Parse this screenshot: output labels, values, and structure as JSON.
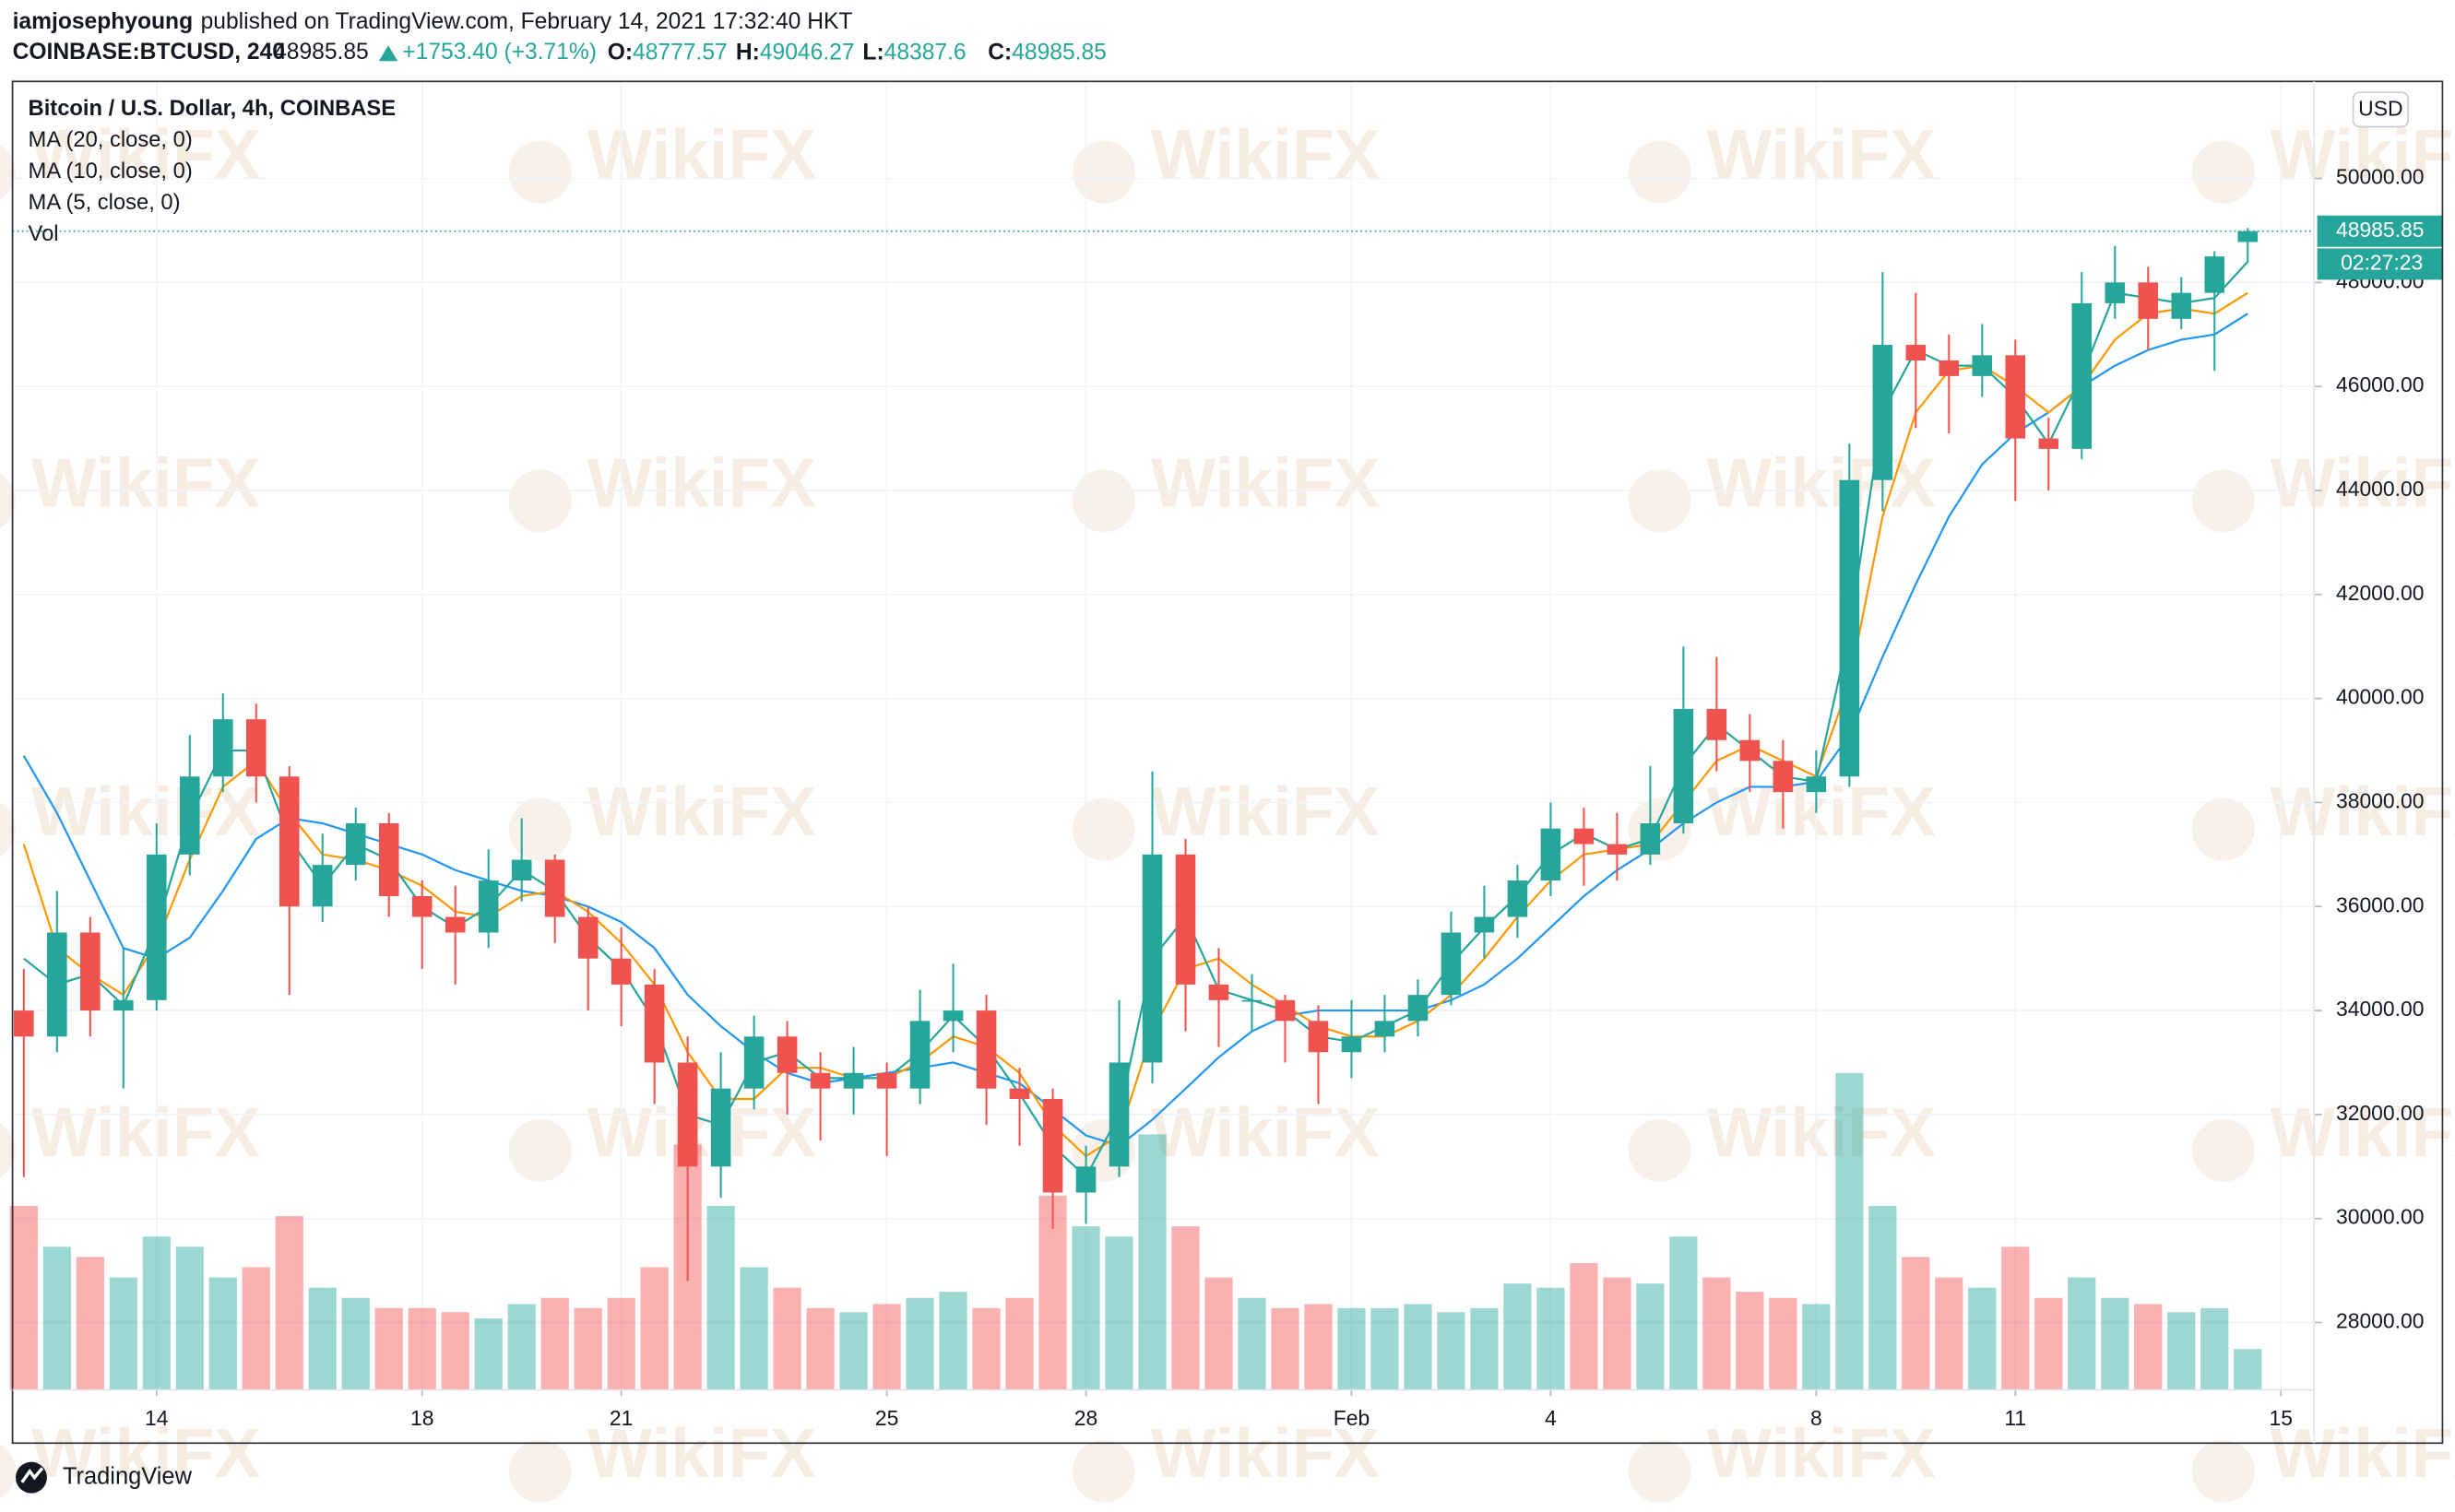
{
  "header": {
    "author": "iamjosephyoung",
    "published": "published on TradingView.com, February 14, 2021 17:32:40 HKT",
    "symbol": "COINBASE:BTCUSD, 240",
    "change": "+1753.40 (+3.71%)",
    "ohlc_labels": [
      "O:",
      "H:",
      "L:",
      "C:"
    ]
  },
  "chart_data": {
    "type": "candlestick",
    "title": "Bitcoin / U.S. Dollar, 4h, COINBASE",
    "currency": "USD",
    "countdown": "02:27:23",
    "watermark": "WikiFX",
    "brand": "TradingView",
    "volume_name": "Vol",
    "up_color": "#26a69a",
    "down_color": "#ef5350",
    "open": [
      34000,
      33500,
      35500,
      34000,
      34200,
      37000,
      38500,
      39600,
      38500,
      36000,
      36800,
      37600,
      36200,
      35800,
      35500,
      36500,
      36900,
      35800,
      35000,
      34500,
      33000,
      31000,
      32500,
      33500,
      32800,
      32500,
      32800,
      32500,
      33800,
      34000,
      32500,
      32300,
      30500,
      31000,
      33000,
      37000,
      34500,
      34200,
      34200,
      33800,
      33200,
      33500,
      33800,
      34300,
      35500,
      35800,
      36500,
      37500,
      37200,
      37000,
      37600,
      39800,
      39200,
      38800,
      38200,
      38500,
      44200,
      46800,
      46500,
      46200,
      46600,
      45000,
      44800,
      47600,
      48000,
      47300,
      47800,
      48777.57
    ],
    "high": [
      34800,
      36300,
      35800,
      35200,
      37600,
      39300,
      40100,
      39900,
      38700,
      37400,
      37900,
      37800,
      36500,
      36400,
      37100,
      37700,
      37000,
      36000,
      35600,
      34800,
      33500,
      33200,
      33900,
      33800,
      33200,
      33300,
      33000,
      34400,
      34900,
      34300,
      32900,
      32500,
      31400,
      34200,
      38600,
      37300,
      35200,
      34700,
      34300,
      34100,
      34200,
      34300,
      34600,
      35900,
      36400,
      36800,
      38000,
      37900,
      37800,
      38700,
      41000,
      40800,
      39700,
      39200,
      39000,
      44900,
      48200,
      47800,
      47000,
      47200,
      46900,
      45400,
      48200,
      48700,
      48300,
      48100,
      48600,
      49046.27
    ],
    "low": [
      30800,
      33200,
      33500,
      32500,
      34000,
      36600,
      38200,
      38000,
      34300,
      35700,
      36500,
      35800,
      34800,
      34500,
      35200,
      36100,
      35300,
      34000,
      33700,
      32200,
      28800,
      30400,
      32100,
      32000,
      31500,
      32000,
      31200,
      32200,
      33200,
      31800,
      31400,
      29800,
      29900,
      30800,
      32600,
      33600,
      33300,
      33600,
      33000,
      32200,
      32700,
      33200,
      33500,
      34100,
      35000,
      35400,
      36200,
      36400,
      36500,
      36800,
      37400,
      38600,
      38200,
      37500,
      37800,
      38300,
      43600,
      45200,
      45100,
      45800,
      43800,
      44000,
      44600,
      47300,
      46700,
      47100,
      46300,
      48387.6
    ],
    "close": [
      33500,
      35500,
      34000,
      34200,
      37000,
      38500,
      39600,
      38500,
      36000,
      36800,
      37600,
      36200,
      35800,
      35500,
      36500,
      36900,
      35800,
      35000,
      34500,
      33000,
      31000,
      32500,
      33500,
      32800,
      32500,
      32800,
      32500,
      33800,
      34000,
      32500,
      32300,
      30500,
      31000,
      33000,
      37000,
      34500,
      34200,
      34200,
      33800,
      33200,
      33500,
      33800,
      34300,
      35500,
      35800,
      36500,
      37500,
      37200,
      37000,
      37600,
      39800,
      39200,
      38800,
      38200,
      38500,
      44200,
      46800,
      46500,
      46200,
      46600,
      45000,
      44800,
      47600,
      48000,
      47300,
      47800,
      48500,
      48985.85
    ],
    "volume": [
      9000,
      7000,
      6500,
      5500,
      7500,
      7000,
      5500,
      6000,
      8500,
      5000,
      4500,
      4000,
      4000,
      3800,
      3500,
      4200,
      4500,
      4000,
      4500,
      6000,
      12000,
      9000,
      6000,
      5000,
      4000,
      3800,
      4200,
      4500,
      4800,
      4000,
      4500,
      9500,
      8000,
      7500,
      12500,
      8000,
      5500,
      4500,
      4000,
      4200,
      4000,
      4000,
      4200,
      3800,
      4000,
      5200,
      5000,
      6200,
      5500,
      5200,
      7500,
      5500,
      4800,
      4500,
      4200,
      15500,
      9000,
      6500,
      5500,
      5000,
      7000,
      4500,
      5500,
      4500,
      4200,
      3800,
      4000,
      2000
    ],
    "vlim": [
      0,
      16000
    ],
    "series": [
      {
        "name": "MA (20, close, 0)",
        "color": "#2196f3",
        "values": [
          38900,
          37800,
          36500,
          35200,
          35000,
          35400,
          36300,
          37300,
          37700,
          37600,
          37400,
          37200,
          37000,
          36700,
          36500,
          36300,
          36200,
          36000,
          35700,
          35200,
          34300,
          33700,
          33200,
          32800,
          32600,
          32700,
          32800,
          32900,
          33000,
          32800,
          32600,
          32100,
          31600,
          31400,
          31900,
          32500,
          33100,
          33600,
          33900,
          34000,
          34000,
          34000,
          34000,
          34200,
          34500,
          35000,
          35600,
          36200,
          36700,
          37100,
          37600,
          38000,
          38300,
          38300,
          38400,
          39300,
          40800,
          42200,
          43500,
          44500,
          45100,
          45500,
          46000,
          46400,
          46700,
          46900,
          47000,
          47400
        ]
      },
      {
        "name": "MA (10, close, 0)",
        "color": "#ff9800",
        "values": [
          37200,
          35200,
          34700,
          34300,
          35300,
          36900,
          38300,
          38800,
          37800,
          37000,
          36900,
          36700,
          36400,
          35900,
          35800,
          36200,
          36300,
          35900,
          35300,
          34500,
          33200,
          32300,
          32300,
          32900,
          32900,
          32700,
          32700,
          33000,
          33500,
          33300,
          32800,
          31800,
          31200,
          31600,
          33600,
          34800,
          35000,
          34500,
          34100,
          33700,
          33500,
          33500,
          33800,
          34300,
          35000,
          35800,
          36500,
          37000,
          37100,
          37200,
          38000,
          38800,
          39100,
          38800,
          38500,
          40300,
          43500,
          45500,
          46300,
          46400,
          46000,
          45500,
          46000,
          46900,
          47400,
          47500,
          47400,
          47800
        ]
      },
      {
        "name": "MA (5, close, 0)",
        "color": "#26a69a",
        "values": [
          35000,
          34500,
          34700,
          34100,
          35600,
          37700,
          39000,
          39000,
          37300,
          36400,
          37200,
          36900,
          36000,
          35600,
          36000,
          36700,
          36300,
          35400,
          34800,
          33800,
          32000,
          31800,
          33000,
          33200,
          32700,
          32700,
          32700,
          33200,
          33900,
          33300,
          32400,
          31400,
          30800,
          32000,
          35000,
          35800,
          34400,
          34200,
          34000,
          33500,
          33400,
          33700,
          34000,
          34900,
          35600,
          36200,
          37000,
          37400,
          37100,
          37300,
          38700,
          39500,
          39000,
          38500,
          38400,
          41300,
          45500,
          46700,
          46400,
          46400,
          45800,
          44900,
          46200,
          47800,
          47700,
          47600,
          47700,
          48400
        ]
      }
    ],
    "ylim": [
      26705,
      51866
    ],
    "yticks": [
      {
        "value": 28000,
        "label": "28000.00"
      },
      {
        "value": 30000,
        "label": "30000.00"
      },
      {
        "value": 32000,
        "label": "32000.00"
      },
      {
        "value": 34000,
        "label": "34000.00"
      },
      {
        "value": 36000,
        "label": "36000.00"
      },
      {
        "value": 38000,
        "label": "38000.00"
      },
      {
        "value": 40000,
        "label": "40000.00"
      },
      {
        "value": 42000,
        "label": "42000.00"
      },
      {
        "value": 44000,
        "label": "44000.00"
      },
      {
        "value": 46000,
        "label": "46000.00"
      },
      {
        "value": 48000,
        "label": "48000.00"
      },
      {
        "value": 50000,
        "label": "50000.00"
      }
    ],
    "xlim": [
      -0.34,
      69
    ],
    "xticks": [
      {
        "value": 4,
        "label": "14"
      },
      {
        "value": 12,
        "label": "18"
      },
      {
        "value": 18,
        "label": "21"
      },
      {
        "value": 26,
        "label": "25"
      },
      {
        "value": 32,
        "label": "28"
      },
      {
        "value": 40,
        "label": "Feb"
      },
      {
        "value": 46,
        "label": "4"
      },
      {
        "value": 54,
        "label": "8"
      },
      {
        "value": 60,
        "label": "11"
      },
      {
        "value": 68,
        "label": "15"
      }
    ],
    "grid": true
  }
}
